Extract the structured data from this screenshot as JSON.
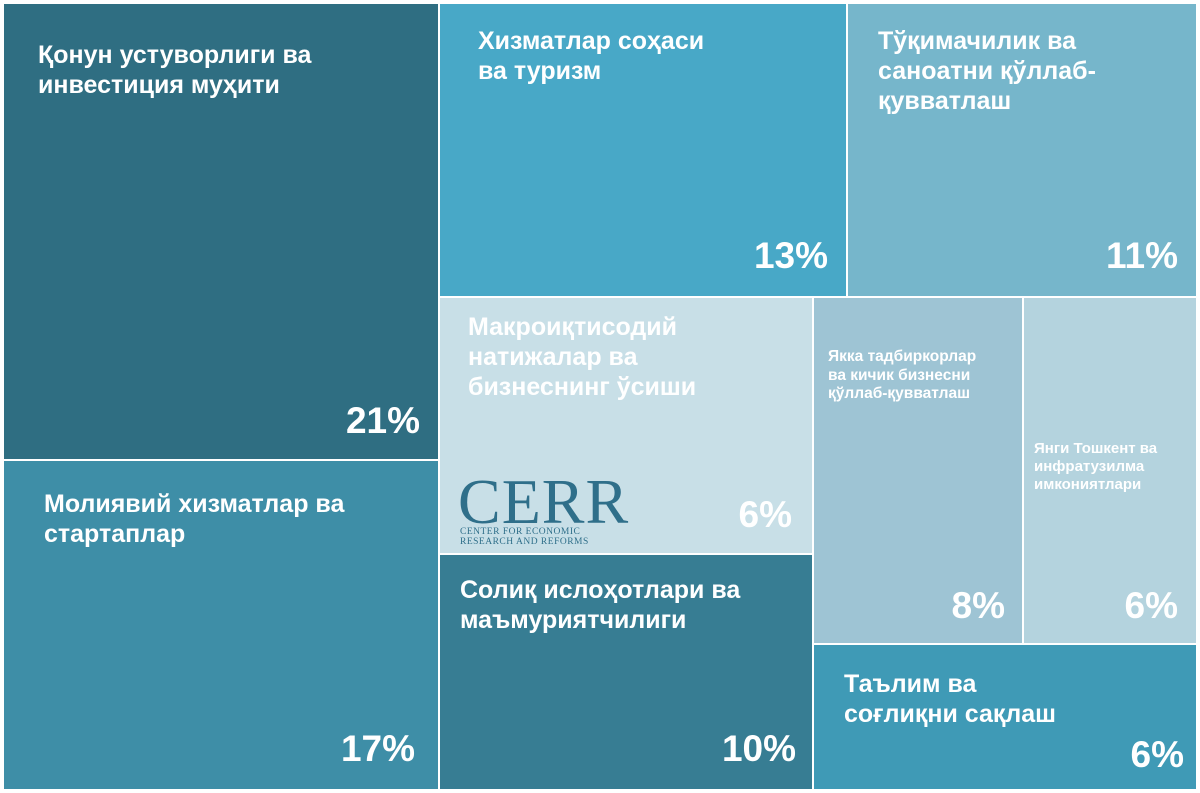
{
  "chart_data": {
    "type": "treemap",
    "items": [
      {
        "label": "Қонун устуворлиги ва\nинвестиция муҳити",
        "value": 21,
        "value_label": "21%",
        "color": "#2f6e82"
      },
      {
        "label": "Молиявий хизматлар ва\nстартаплар",
        "value": 17,
        "value_label": "17%",
        "color": "#3e8ea7"
      },
      {
        "label": "Хизматлар соҳаси\nва туризм",
        "value": 13,
        "value_label": "13%",
        "color": "#48a8c7"
      },
      {
        "label": "Тўқимачилик ва\nсаноатни қўллаб-\nқувватлаш",
        "value": 11,
        "value_label": "11%",
        "color": "#76b6cb"
      },
      {
        "label": "Солиқ ислоҳотлари ва\nмаъмуриятчилиги",
        "value": 10,
        "value_label": "10%",
        "color": "#377d93"
      },
      {
        "label": "Якка тадбиркорлар\nва кичик бизнесни\nқўллаб-қувватлаш",
        "value": 8,
        "value_label": "8%",
        "color": "#9ec4d4"
      },
      {
        "label": "Макроиқтисодий\nнатижалар ва\nбизнеснинг ўсиши",
        "value": 6,
        "value_label": "6%",
        "color": "#c8dfe7"
      },
      {
        "label": "Янги Тошкент ва\nинфратузилма\nимкониятлари",
        "value": 6,
        "value_label": "6%",
        "color": "#b4d3de"
      },
      {
        "label": "Таълим ва\nсоғлиқни сақлаш",
        "value": 6,
        "value_label": "6%",
        "color": "#3f9ab6"
      }
    ]
  },
  "logo": {
    "word": "CERR",
    "subtitle_line1": "CENTER FOR ECONOMIC",
    "subtitle_line2": "RESEARCH AND REFORMS"
  }
}
